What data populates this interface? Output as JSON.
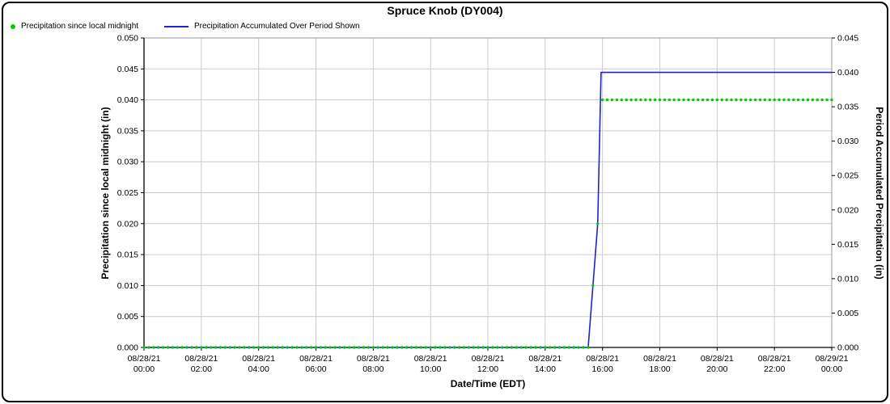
{
  "title": "Spruce Knob (DY004)",
  "legend": [
    {
      "label": "Precipitation since local midnight",
      "marker": "dot",
      "color": "#00cc00"
    },
    {
      "label": "Precipitation Accumulated Over Period Shown",
      "marker": "line",
      "color": "#2222cc"
    }
  ],
  "chart_data": {
    "type": "line",
    "title": "Spruce Knob (DY004)",
    "xlabel": "Date/Time (EDT)",
    "grid": true,
    "axes": {
      "left": {
        "label": "Precipitation since local midnight (in)",
        "min": 0.0,
        "max": 0.05,
        "ticks": [
          "0.000",
          "0.005",
          "0.010",
          "0.015",
          "0.020",
          "0.025",
          "0.030",
          "0.035",
          "0.040",
          "0.045",
          "0.050"
        ]
      },
      "right": {
        "label": "Period Accumulated Precipitation (in)",
        "min": 0.0,
        "max": 0.045,
        "ticks": [
          "0.000",
          "0.005",
          "0.010",
          "0.015",
          "0.020",
          "0.025",
          "0.030",
          "0.035",
          "0.040",
          "0.045"
        ]
      },
      "x": {
        "span_minutes": 1440,
        "tick_interval_minutes": 120,
        "ticks": [
          {
            "date": "08/28/21",
            "time": "00:00"
          },
          {
            "date": "08/28/21",
            "time": "02:00"
          },
          {
            "date": "08/28/21",
            "time": "04:00"
          },
          {
            "date": "08/28/21",
            "time": "06:00"
          },
          {
            "date": "08/28/21",
            "time": "08:00"
          },
          {
            "date": "08/28/21",
            "time": "10:00"
          },
          {
            "date": "08/28/21",
            "time": "12:00"
          },
          {
            "date": "08/28/21",
            "time": "14:00"
          },
          {
            "date": "08/28/21",
            "time": "16:00"
          },
          {
            "date": "08/28/21",
            "time": "18:00"
          },
          {
            "date": "08/28/21",
            "time": "20:00"
          },
          {
            "date": "08/28/21",
            "time": "22:00"
          },
          {
            "date": "08/29/21",
            "time": "00:00"
          }
        ]
      }
    },
    "series": {
      "dots": {
        "name": "Precipitation since local midnight",
        "axis": "left",
        "color": "#00cc00",
        "interval_min": 10,
        "segments": [
          {
            "start": "00:00",
            "end": "15:30",
            "value": 0.0
          },
          {
            "time": "15:40",
            "value": 0.01
          },
          {
            "time": "15:50",
            "value": 0.02
          },
          {
            "start": "16:00",
            "end": "24:00",
            "value": 0.04
          }
        ]
      },
      "line": {
        "name": "Precipitation Accumulated Over Period Shown",
        "axis": "right",
        "color": "#2222cc",
        "points": [
          [
            "00:00",
            0.0
          ],
          [
            "15:30",
            0.0
          ],
          [
            "15:40",
            0.009
          ],
          [
            "15:50",
            0.018
          ],
          [
            "15:57",
            0.04
          ],
          [
            "24:00",
            0.04
          ]
        ]
      }
    },
    "colors": {
      "grid": "#cccccc",
      "axis": "#000000",
      "frame": "#999999"
    }
  }
}
